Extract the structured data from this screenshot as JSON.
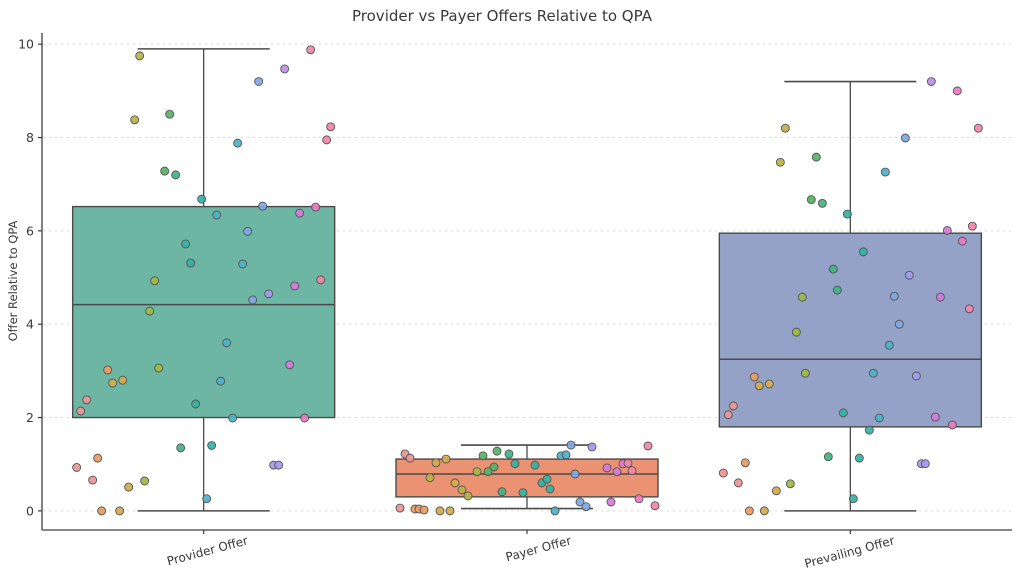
{
  "title": "Provider vs Payer Offers Relative to QPA",
  "colors": {
    "background": "#ffffff",
    "spine": "#3d3d3d",
    "grid": "#d9d9d9",
    "box_edge": "#4a4a4a",
    "point_edge": "#555555",
    "text": "#3a3a3a"
  },
  "chart_data": {
    "type": "box",
    "overlay": "strip-scatter",
    "title": "Provider vs Payer Offers Relative to QPA",
    "xlabel": "",
    "ylabel": "Offer Relative to QPA",
    "categories": [
      "Provider Offer",
      "Payer Offer",
      "Prevailing Offer"
    ],
    "yticks": [
      0,
      2,
      4,
      6,
      8,
      10
    ],
    "ylim": [
      -0.41,
      10.24
    ],
    "grid": "horizontal-dashed",
    "legend": "none",
    "boxes": [
      {
        "category": "Provider Offer",
        "whisker_low": 0.0,
        "q1": 2.0,
        "median": 4.42,
        "q3": 6.52,
        "whisker_high": 9.9,
        "fill": "#6DB6A3"
      },
      {
        "category": "Payer Offer",
        "whisker_low": 0.05,
        "q1": 0.3,
        "median": 0.79,
        "q3": 1.11,
        "whisker_high": 1.41,
        "fill": "#EB9272"
      },
      {
        "category": "Prevailing Offer",
        "whisker_low": 0.0,
        "q1": 1.8,
        "median": 3.25,
        "q3": 5.95,
        "whisker_high": 9.2,
        "fill": "#93A2C6"
      }
    ],
    "point_palette": [
      "#EC9494",
      "#EA9C60",
      "#D3AB4D",
      "#BBB248",
      "#9FB944",
      "#58B264",
      "#45B287",
      "#35B1A3",
      "#4FB0C8",
      "#80A7E2",
      "#A49BED",
      "#BC8EE6",
      "#D67ADA",
      "#EB79C4",
      "#F185A8"
    ],
    "points_format": "[x_offset_px_from_category_center, y_value, palette_index]",
    "points": {
      "Provider Offer": [
        [
          -64,
          9.75,
          3
        ],
        [
          107,
          9.88,
          14
        ],
        [
          81,
          9.47,
          11
        ],
        [
          55,
          9.2,
          9
        ],
        [
          -69,
          8.38,
          3
        ],
        [
          -34,
          8.5,
          5
        ],
        [
          127,
          8.23,
          14
        ],
        [
          123,
          7.95,
          14
        ],
        [
          34,
          7.88,
          8
        ],
        [
          -39,
          7.28,
          5
        ],
        [
          -28,
          7.2,
          6
        ],
        [
          -2,
          6.68,
          7
        ],
        [
          59,
          6.53,
          9
        ],
        [
          112,
          6.51,
          13
        ],
        [
          96,
          6.38,
          12
        ],
        [
          13,
          6.34,
          8
        ],
        [
          44,
          5.99,
          9
        ],
        [
          -18,
          5.72,
          7
        ],
        [
          -13,
          5.31,
          7
        ],
        [
          39,
          5.29,
          8
        ],
        [
          -49,
          4.93,
          4
        ],
        [
          117,
          4.95,
          14
        ],
        [
          91,
          4.82,
          12
        ],
        [
          65,
          4.65,
          10
        ],
        [
          49,
          4.52,
          9
        ],
        [
          -54,
          4.28,
          4
        ],
        [
          23,
          3.6,
          8
        ],
        [
          -45,
          3.06,
          4
        ],
        [
          -96,
          3.02,
          1
        ],
        [
          86,
          3.13,
          12
        ],
        [
          -91,
          2.74,
          2
        ],
        [
          -81,
          2.8,
          2
        ],
        [
          17,
          2.78,
          8
        ],
        [
          -117,
          2.38,
          0
        ],
        [
          -123,
          2.14,
          0
        ],
        [
          -8,
          2.29,
          7
        ],
        [
          29,
          1.99,
          8
        ],
        [
          101,
          1.99,
          13
        ],
        [
          -23,
          1.35,
          6
        ],
        [
          8,
          1.4,
          7
        ],
        [
          -106,
          1.13,
          1
        ],
        [
          -127,
          0.93,
          0
        ],
        [
          -111,
          0.66,
          0
        ],
        [
          -59,
          0.64,
          4
        ],
        [
          -75,
          0.51,
          2
        ],
        [
          70,
          0.98,
          10
        ],
        [
          75,
          0.98,
          10
        ],
        [
          3,
          0.26,
          8
        ],
        [
          -102,
          0.0,
          1
        ],
        [
          -84,
          0.0,
          2
        ]
      ],
      "Payer Offer": [
        [
          -122,
          1.22,
          0
        ],
        [
          -117,
          1.13,
          0
        ],
        [
          -91,
          1.03,
          2
        ],
        [
          -81,
          1.11,
          2
        ],
        [
          -44,
          1.18,
          5
        ],
        [
          -30,
          1.28,
          5
        ],
        [
          -18,
          1.22,
          6
        ],
        [
          -12,
          1.01,
          7
        ],
        [
          -50,
          0.84,
          4
        ],
        [
          -39,
          0.84,
          5
        ],
        [
          -33,
          0.94,
          5
        ],
        [
          -97,
          0.71,
          3
        ],
        [
          -72,
          0.6,
          2
        ],
        [
          -65,
          0.45,
          3
        ],
        [
          -59,
          0.32,
          3
        ],
        [
          -25,
          0.41,
          6
        ],
        [
          -4,
          0.39,
          7
        ],
        [
          -127,
          0.06,
          0
        ],
        [
          -112,
          0.04,
          1
        ],
        [
          -108,
          0.04,
          1
        ],
        [
          -103,
          0.02,
          1
        ],
        [
          -87,
          0.0,
          2
        ],
        [
          -77,
          0.0,
          2
        ],
        [
          44,
          1.41,
          9
        ],
        [
          65,
          1.37,
          10
        ],
        [
          34,
          1.18,
          8
        ],
        [
          39,
          1.2,
          8
        ],
        [
          8,
          0.98,
          7
        ],
        [
          48,
          0.79,
          9
        ],
        [
          80,
          0.92,
          12
        ],
        [
          96,
          1.01,
          13
        ],
        [
          101,
          1.02,
          14
        ],
        [
          90,
          0.84,
          12
        ],
        [
          105,
          0.86,
          14
        ],
        [
          15,
          0.6,
          7
        ],
        [
          20,
          0.68,
          7
        ],
        [
          23,
          0.47,
          7
        ],
        [
          53,
          0.19,
          9
        ],
        [
          59,
          0.09,
          9
        ],
        [
          28,
          0.0,
          8
        ],
        [
          84,
          0.19,
          12
        ],
        [
          112,
          0.26,
          13
        ],
        [
          121,
          1.39,
          14
        ],
        [
          128,
          0.11,
          14
        ]
      ],
      "Prevailing Offer": [
        [
          81,
          9.2,
          11
        ],
        [
          107,
          9.0,
          13
        ],
        [
          128,
          8.2,
          14
        ],
        [
          -65,
          8.2,
          3
        ],
        [
          55,
          7.99,
          9
        ],
        [
          -70,
          7.47,
          3
        ],
        [
          -34,
          7.58,
          5
        ],
        [
          35,
          7.26,
          8
        ],
        [
          -39,
          6.67,
          5
        ],
        [
          -28,
          6.59,
          6
        ],
        [
          -3,
          6.36,
          7
        ],
        [
          122,
          6.1,
          14
        ],
        [
          97,
          6.01,
          12
        ],
        [
          112,
          5.78,
          13
        ],
        [
          13,
          5.55,
          7
        ],
        [
          -17,
          5.18,
          6
        ],
        [
          59,
          5.05,
          10
        ],
        [
          -13,
          4.73,
          6
        ],
        [
          44,
          4.6,
          9
        ],
        [
          90,
          4.58,
          12
        ],
        [
          -48,
          4.58,
          4
        ],
        [
          119,
          4.33,
          14
        ],
        [
          49,
          4.0,
          9
        ],
        [
          -54,
          3.83,
          4
        ],
        [
          39,
          3.55,
          8
        ],
        [
          -45,
          2.95,
          4
        ],
        [
          23,
          2.95,
          8
        ],
        [
          66,
          2.89,
          10
        ],
        [
          -96,
          2.87,
          1
        ],
        [
          -91,
          2.68,
          2
        ],
        [
          -81,
          2.72,
          2
        ],
        [
          -117,
          2.25,
          0
        ],
        [
          -122,
          2.06,
          0
        ],
        [
          -7,
          2.1,
          7
        ],
        [
          29,
          1.99,
          8
        ],
        [
          85,
          2.01,
          12
        ],
        [
          102,
          1.84,
          13
        ],
        [
          19,
          1.73,
          7
        ],
        [
          -22,
          1.16,
          6
        ],
        [
          9,
          1.13,
          7
        ],
        [
          -105,
          1.03,
          1
        ],
        [
          -127,
          0.81,
          0
        ],
        [
          -112,
          0.6,
          0
        ],
        [
          -60,
          0.58,
          4
        ],
        [
          -74,
          0.43,
          2
        ],
        [
          71,
          1.01,
          10
        ],
        [
          75,
          1.01,
          10
        ],
        [
          3,
          0.26,
          7
        ],
        [
          -101,
          0.0,
          1
        ],
        [
          -86,
          0.0,
          2
        ]
      ]
    }
  }
}
